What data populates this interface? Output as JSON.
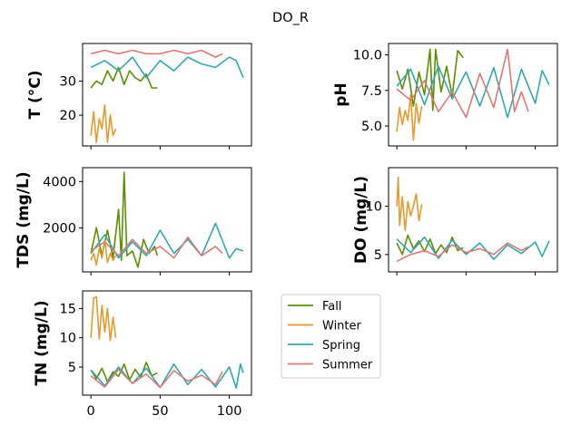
{
  "chart_data": {
    "type": "line",
    "title": "DO_R",
    "legend": {
      "placement": "lower-center",
      "entries": [
        "Fall",
        "Winter",
        "Spring",
        "Summer"
      ]
    },
    "colors": {
      "Fall": "#5a8f00",
      "Winter": "#e59a2c",
      "Spring": "#2fa9b1",
      "Summer": "#e07872"
    },
    "x_ticks": [
      "0",
      "50",
      "100"
    ],
    "xlim": [
      -6,
      116
    ],
    "panels": [
      {
        "ylabel": "T  (°C)",
        "ylim": [
          11,
          41
        ],
        "yticks": [
          {
            "v": 20,
            "label": "20"
          },
          {
            "v": 30,
            "label": "30"
          }
        ],
        "show_x_labels": false,
        "series": [
          {
            "name": "Fall",
            "x": [
              0,
              4,
              8,
              12,
              16,
              20,
              24,
              28,
              32,
              36,
              40,
              44,
              48
            ],
            "y": [
              28,
              30,
              29,
              33,
              30,
              34,
              29,
              33,
              31,
              30,
              32,
              28,
              28
            ]
          },
          {
            "name": "Winter",
            "x": [
              0,
              2,
              4,
              6,
              8,
              10,
              12,
              14,
              16,
              18
            ],
            "y": [
              14,
              21,
              12,
              19,
              16,
              23,
              12,
              20,
              14,
              16
            ]
          },
          {
            "name": "Spring",
            "x": [
              0,
              10,
              20,
              30,
              40,
              50,
              60,
              70,
              80,
              90,
              100,
              105,
              110
            ],
            "y": [
              34,
              36,
              33,
              37,
              31,
              36,
              33,
              37,
              35,
              34,
              37,
              36,
              31
            ]
          },
          {
            "name": "Summer",
            "x": [
              0,
              10,
              20,
              30,
              40,
              50,
              60,
              70,
              80,
              90,
              95
            ],
            "y": [
              38,
              39,
              38,
              39,
              38,
              38,
              39,
              38,
              39,
              37,
              38
            ]
          }
        ]
      },
      {
        "ylabel": "pH",
        "ylim": [
          3.6,
          10.8
        ],
        "yticks": [
          {
            "v": 5,
            "label": "5.0"
          },
          {
            "v": 7.5,
            "label": "7.5"
          },
          {
            "v": 10,
            "label": "10.0"
          }
        ],
        "show_x_labels": false,
        "series": [
          {
            "name": "Fall",
            "x": [
              0,
              4,
              8,
              12,
              16,
              20,
              24,
              26,
              28,
              32,
              36,
              40,
              44,
              48
            ],
            "y": [
              8.9,
              7.6,
              9.0,
              6.4,
              8.8,
              7.2,
              10.4,
              6.1,
              10.4,
              7.4,
              9.2,
              7.1,
              10.3,
              9.8
            ]
          },
          {
            "name": "Winter",
            "x": [
              0,
              2,
              4,
              6,
              8,
              10,
              12,
              14,
              16,
              18
            ],
            "y": [
              4.6,
              6.3,
              5.1,
              6.1,
              5.4,
              7.2,
              4.0,
              6.6,
              5.2,
              6.4
            ]
          },
          {
            "name": "Spring",
            "x": [
              0,
              10,
              20,
              30,
              40,
              50,
              60,
              70,
              80,
              90,
              100,
              105,
              110
            ],
            "y": [
              7.8,
              9.0,
              6.5,
              9.2,
              6.9,
              8.8,
              6.4,
              9.1,
              5.6,
              9.0,
              6.6,
              8.9,
              7.9
            ]
          },
          {
            "name": "Summer",
            "x": [
              0,
              10,
              20,
              30,
              40,
              50,
              60,
              70,
              80,
              85,
              90,
              95
            ],
            "y": [
              7.6,
              6.8,
              8.2,
              6.0,
              7.4,
              5.6,
              8.7,
              6.3,
              10.4,
              6.0,
              7.4,
              6.0
            ]
          }
        ]
      },
      {
        "ylabel": "TDS (mg/L)",
        "ylim": [
          100,
          4600
        ],
        "yticks": [
          {
            "v": 2000,
            "label": "2000"
          },
          {
            "v": 4000,
            "label": "4000"
          }
        ],
        "show_x_labels": false,
        "series": [
          {
            "name": "Fall",
            "x": [
              0,
              4,
              8,
              12,
              16,
              20,
              22,
              24,
              26,
              30,
              34,
              38,
              42,
              46,
              48
            ],
            "y": [
              900,
              2000,
              800,
              1900,
              700,
              2800,
              600,
              4400,
              800,
              1000,
              300,
              1500,
              900,
              1200,
              800
            ]
          },
          {
            "name": "Winter",
            "x": [
              0,
              2,
              4,
              6,
              8,
              10,
              12,
              14,
              16,
              18
            ],
            "y": [
              600,
              900,
              400,
              1100,
              700,
              1500,
              500,
              900,
              600,
              800
            ]
          },
          {
            "name": "Spring",
            "x": [
              0,
              10,
              20,
              30,
              40,
              50,
              60,
              70,
              80,
              90,
              100,
              105,
              110
            ],
            "y": [
              900,
              1700,
              700,
              1400,
              800,
              1900,
              900,
              1500,
              800,
              2200,
              700,
              1100,
              1000
            ]
          },
          {
            "name": "Summer",
            "x": [
              0,
              10,
              20,
              30,
              40,
              50,
              60,
              70,
              80,
              90,
              95
            ],
            "y": [
              1000,
              1400,
              800,
              1500,
              900,
              1200,
              700,
              1600,
              800,
              1200,
              900
            ]
          }
        ]
      },
      {
        "ylabel": "DO (mg/L)",
        "ylim": [
          3.2,
          14
        ],
        "yticks": [
          {
            "v": 5,
            "label": "5"
          },
          {
            "v": 10,
            "label": "10"
          }
        ],
        "show_x_labels": false,
        "series": [
          {
            "name": "Fall",
            "x": [
              0,
              4,
              8,
              12,
              16,
              20,
              24,
              28,
              32,
              36,
              40,
              44,
              48
            ],
            "y": [
              6.2,
              5.0,
              7.0,
              5.6,
              6.4,
              5.3,
              6.6,
              5.1,
              6.0,
              5.2,
              6.8,
              5.4,
              5.7
            ]
          },
          {
            "name": "Winter",
            "x": [
              0,
              1,
              2,
              4,
              6,
              8,
              10,
              12,
              14,
              16,
              18
            ],
            "y": [
              10.0,
              13.0,
              8.0,
              11.0,
              7.5,
              10.5,
              9.0,
              10.0,
              11.3,
              8.5,
              10.2
            ]
          },
          {
            "name": "Spring",
            "x": [
              0,
              10,
              20,
              30,
              40,
              50,
              60,
              70,
              80,
              90,
              100,
              105,
              110
            ],
            "y": [
              6.6,
              5.2,
              6.8,
              4.6,
              6.5,
              5.0,
              6.2,
              4.5,
              6.0,
              5.1,
              6.3,
              4.8,
              6.4
            ]
          },
          {
            "name": "Summer",
            "x": [
              0,
              10,
              20,
              30,
              40,
              50,
              60,
              70,
              80,
              90,
              95
            ],
            "y": [
              4.3,
              5.0,
              5.4,
              4.8,
              6.0,
              5.2,
              5.6,
              5.0,
              6.2,
              5.4,
              5.8
            ]
          }
        ]
      },
      {
        "ylabel": "TN (mg/L)",
        "ylim": [
          0.2,
          18
        ],
        "yticks": [
          {
            "v": 5,
            "label": "5"
          },
          {
            "v": 10,
            "label": "10"
          },
          {
            "v": 15,
            "label": "15"
          }
        ],
        "show_x_labels": true,
        "series": [
          {
            "name": "Fall",
            "x": [
              0,
              4,
              8,
              12,
              16,
              20,
              24,
              28,
              32,
              36,
              40,
              44,
              48
            ],
            "y": [
              4.5,
              3.0,
              4.8,
              2.5,
              4.2,
              3.4,
              5.5,
              2.8,
              4.6,
              3.2,
              5.8,
              3.5,
              4.0
            ]
          },
          {
            "name": "Winter",
            "x": [
              0,
              2,
              4,
              6,
              8,
              10,
              12,
              14,
              16,
              18
            ],
            "y": [
              10.0,
              16.8,
              17.0,
              9.8,
              15.5,
              11.0,
              15.0,
              9.5,
              13.5,
              10.0
            ]
          },
          {
            "name": "Spring",
            "x": [
              0,
              10,
              20,
              30,
              40,
              50,
              60,
              70,
              80,
              90,
              100,
              105,
              108,
              110
            ],
            "y": [
              4.5,
              1.8,
              5.0,
              2.2,
              4.8,
              1.5,
              5.5,
              2.0,
              4.6,
              1.6,
              5.0,
              1.4,
              5.5,
              4.0
            ]
          },
          {
            "name": "Summer",
            "x": [
              0,
              10,
              20,
              30,
              40,
              50,
              60,
              70,
              80,
              90,
              95
            ],
            "y": [
              3.5,
              1.6,
              4.6,
              2.2,
              3.8,
              1.5,
              4.4,
              2.6,
              3.6,
              2.0,
              4.2
            ]
          }
        ]
      }
    ]
  }
}
